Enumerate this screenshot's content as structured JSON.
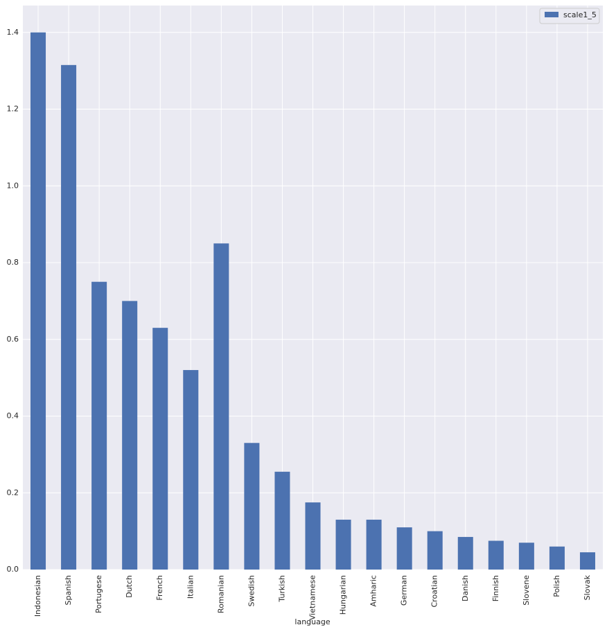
{
  "chart_data": {
    "type": "bar",
    "x_label": "language",
    "categories": [
      "Indonesian",
      "Spanish",
      "Portugese",
      "Dutch",
      "French",
      "Italian",
      "Romanian",
      "Swedish",
      "Turkish",
      "Vietnamese",
      "Hungarian",
      "Amharic",
      "German",
      "Croatian",
      "Danish",
      "Finnish",
      "Slovene",
      "Polish",
      "Slovak"
    ],
    "series": [
      {
        "name": "scale1_5",
        "color": "#4c72b0",
        "values": [
          1.4,
          1.315,
          0.75,
          0.7,
          0.63,
          0.52,
          0.85,
          0.33,
          0.255,
          0.175,
          0.13,
          0.13,
          0.11,
          0.1,
          0.085,
          0.075,
          0.07,
          0.06,
          0.045
        ]
      }
    ],
    "ylim": [
      0,
      1.47
    ],
    "yticks": [
      {
        "value": 0,
        "label": "0.0"
      },
      0.2,
      0.4,
      0.6,
      0.8,
      {
        "value": 1,
        "label": "1.0"
      },
      1.2,
      1.4
    ],
    "grid": true,
    "legend": "upper right"
  }
}
